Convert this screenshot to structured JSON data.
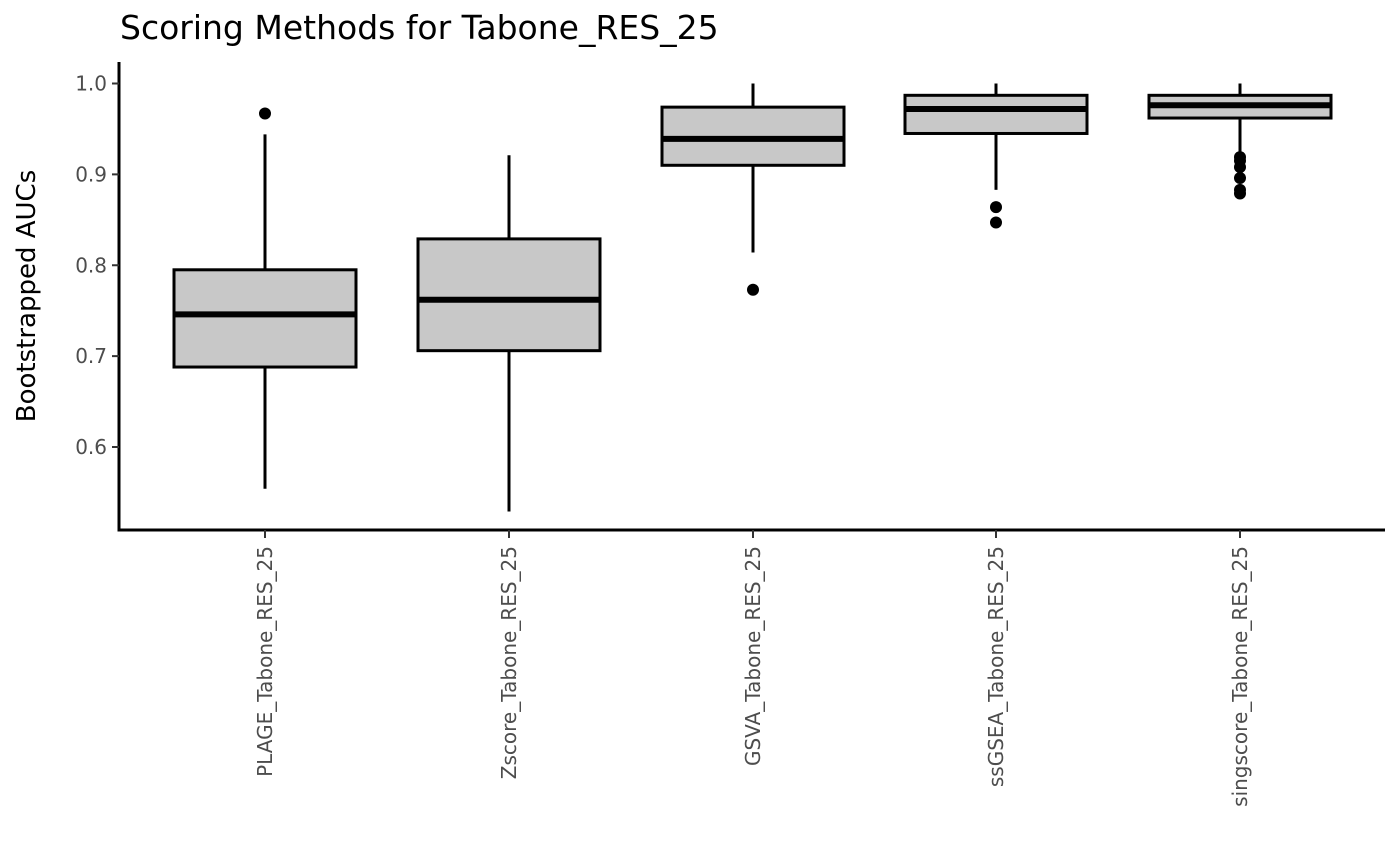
{
  "chart_data": {
    "type": "box",
    "title": "Scoring Methods for Tabone_RES_25",
    "xlabel": "",
    "ylabel": "Bootstrapped AUCs",
    "ylim": [
      0.509,
      1.0
    ],
    "yticks": [
      "0.6",
      "0.7",
      "0.8",
      "0.9",
      "1.0"
    ],
    "grid": false,
    "colors": {
      "box_fill": "#c8c8c8",
      "stroke": "#000000"
    },
    "categories": [
      "PLAGE_Tabone_RES_25",
      "Zscore_Tabone_RES_25",
      "GSVA_Tabone_RES_25",
      "ssGSEA_Tabone_RES_25",
      "singscore_Tabone_RES_25"
    ],
    "boxes": [
      {
        "whisker_low": 0.554,
        "q1": 0.688,
        "median": 0.746,
        "q3": 0.795,
        "whisker_high": 0.944,
        "outliers": [
          0.967
        ]
      },
      {
        "whisker_low": 0.529,
        "q1": 0.706,
        "median": 0.762,
        "q3": 0.829,
        "whisker_high": 0.921,
        "outliers": []
      },
      {
        "whisker_low": 0.814,
        "q1": 0.91,
        "median": 0.939,
        "q3": 0.974,
        "whisker_high": 1.0,
        "outliers": [
          0.773
        ]
      },
      {
        "whisker_low": 0.883,
        "q1": 0.945,
        "median": 0.972,
        "q3": 0.987,
        "whisker_high": 1.0,
        "outliers": [
          0.864,
          0.847
        ]
      },
      {
        "whisker_low": 0.92,
        "q1": 0.962,
        "median": 0.976,
        "q3": 0.987,
        "whisker_high": 1.0,
        "outliers": [
          0.919,
          0.915,
          0.908,
          0.896,
          0.883,
          0.879
        ]
      }
    ]
  }
}
